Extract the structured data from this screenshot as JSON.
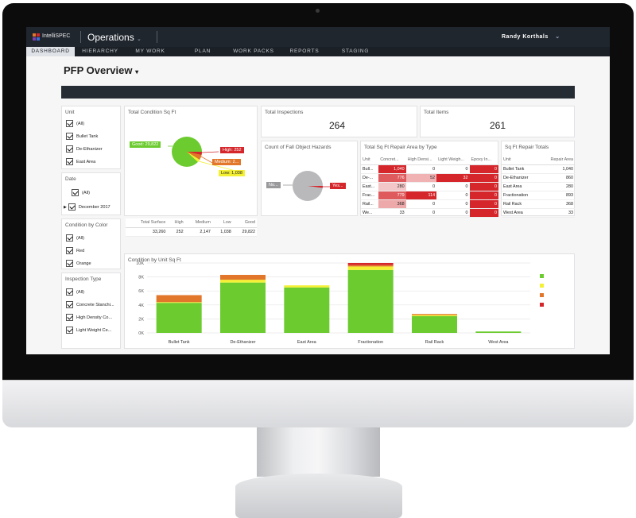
{
  "app": {
    "logo_text": "IntelliSPEC",
    "title": "Operations",
    "user": "Randy Korthals"
  },
  "nav": [
    {
      "label": "DASHBOARD",
      "active": true
    },
    {
      "label": "HIERARCHY"
    },
    {
      "label": "MY WORK"
    },
    {
      "label": "PLAN"
    },
    {
      "label": "WORK PACKS"
    },
    {
      "label": "REPORTS"
    },
    {
      "label": "STAGING"
    }
  ],
  "page_title": "PFP Overview",
  "filters": {
    "unit": {
      "title": "Unit",
      "items": [
        "(All)",
        "Bullet Tank",
        "De-Ethanizer",
        "East Area"
      ]
    },
    "date": {
      "title": "Date",
      "items": [
        "(All)",
        "December 2017"
      ]
    },
    "condition": {
      "title": "Condition by Color",
      "items": [
        "(All)",
        "Red",
        "Orange"
      ]
    },
    "inspection": {
      "title": "Inspection Type",
      "items": [
        "(All)",
        "Concrete Stanchi...",
        "High Density Co...",
        "Light Weight Ce..."
      ]
    }
  },
  "total_condition": {
    "title": "Total Condition Sq Ft",
    "labels": {
      "good": "Good: 29,822",
      "high": "High: 252",
      "medium": "Medium: 2...",
      "low": "Low: 1,038"
    },
    "table_headers": [
      "Total Surface",
      "High",
      "Medium",
      "Low",
      "Good"
    ],
    "table_values": [
      "33,260",
      "252",
      "2,147",
      "1,038",
      "29,822"
    ]
  },
  "total_inspections": {
    "title": "Total Inspections",
    "value": "264"
  },
  "total_items": {
    "title": "Total Items",
    "value": "261"
  },
  "fall_hazards": {
    "title": "Count of Fall Object Hazards",
    "no_label": "No...",
    "yes_label": "Yes..."
  },
  "repair_by_type": {
    "title": "Total Sq Ft Repair Area by Type",
    "headers": [
      "Unit",
      "Concret...",
      "High Densi...",
      "Light Weigh...",
      "Epoxy In..."
    ],
    "rows": [
      [
        "Bull...",
        "1,040",
        "0",
        "0",
        "0"
      ],
      [
        "De-...",
        "776",
        "52",
        "32",
        "0"
      ],
      [
        "East...",
        "280",
        "0",
        "0",
        "0"
      ],
      [
        "Frac...",
        "779",
        "114",
        "0",
        "0"
      ],
      [
        "Rail...",
        "368",
        "0",
        "0",
        "0"
      ],
      [
        "We...",
        "33",
        "0",
        "0",
        "0"
      ]
    ]
  },
  "repair_totals": {
    "title": "Sq Ft Repair Totals",
    "headers": [
      "Unit",
      "Repair Area"
    ],
    "rows": [
      [
        "Bullet Tank",
        "1,040"
      ],
      [
        "De-Ethanizer",
        "860"
      ],
      [
        "East Area",
        "280"
      ],
      [
        "Fractionation",
        "893"
      ],
      [
        "Rail Rack",
        "368"
      ],
      [
        "West Area",
        "33"
      ]
    ]
  },
  "colors": {
    "green": "#6ccb2f",
    "yellow": "#f4f034",
    "orange": "#e2762a",
    "red": "#d4262b"
  },
  "chart_data": {
    "type": "bar",
    "stacked": true,
    "title": "Condition by Unit Sq Ft",
    "categories": [
      "Bullet Tank",
      "De-Ethanizer",
      "East Area",
      "Fractionation",
      "Rail Rack",
      "West Area"
    ],
    "series": [
      {
        "color": "#6ccb2f",
        "values": [
          4300,
          7200,
          6500,
          9000,
          2400,
          200
        ]
      },
      {
        "color": "#f4f034",
        "values": [
          100,
          400,
          300,
          500,
          150,
          0
        ]
      },
      {
        "color": "#e2762a",
        "values": [
          1000,
          700,
          0,
          200,
          150,
          0
        ]
      },
      {
        "color": "#d4262b",
        "values": [
          0,
          0,
          0,
          300,
          0,
          0
        ]
      }
    ],
    "y_ticks": [
      "0K",
      "2K",
      "4K",
      "6K",
      "8K",
      "10K"
    ],
    "ylim": [
      0,
      10000
    ],
    "grid": true
  }
}
